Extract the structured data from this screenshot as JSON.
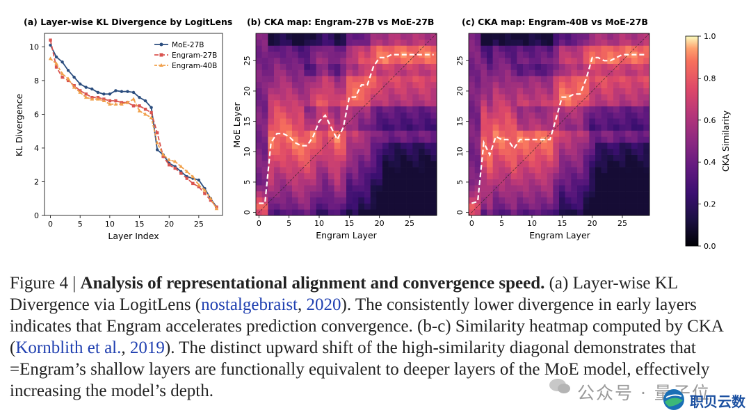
{
  "figure": {
    "number_label": "Figure 4 |",
    "lead": "Analysis of representational alignment and convergence speed.",
    "caption_a": " (a) Layer-wise KL Divergence via LogitLens (",
    "cite1_name": "nostalgebraist",
    "cite1_sep": ", ",
    "cite1_year": "2020",
    "caption_b": "). The consistently lower divergence in early layers indicates that Engram accelerates prediction convergence. (b-c) Similarity heatmap computed by CKA (",
    "cite2_name": "Kornblith et al.",
    "cite2_sep": ", ",
    "cite2_year": "2019",
    "caption_c": "). The distinct upward shift of the high-similarity diagonal demonstrates that =Engram’s shallow layers are functionally equivalent to deeper layers of the MoE model, effectively increasing the model’s depth."
  },
  "chart_data": [
    {
      "type": "line",
      "title": "(a) Layer-wise KL Divergence by LogitLens",
      "xlabel": "Layer Index",
      "ylabel": "KL Divergence",
      "xlim": [
        -1,
        29
      ],
      "ylim": [
        0,
        10.8
      ],
      "xticks": [
        0,
        5,
        10,
        15,
        20,
        25
      ],
      "yticks": [
        0,
        2,
        4,
        6,
        8,
        10
      ],
      "legend_position": "top-right",
      "x": [
        0,
        1,
        2,
        3,
        4,
        5,
        6,
        7,
        8,
        9,
        10,
        11,
        12,
        13,
        14,
        15,
        16,
        17,
        18,
        19,
        20,
        21,
        22,
        23,
        24,
        25,
        26,
        27,
        28
      ],
      "series": [
        {
          "name": "MoE-27B",
          "color": "#2b4d7e",
          "marker": "circle",
          "values": [
            10.1,
            9.4,
            9.1,
            8.6,
            8.2,
            7.8,
            7.6,
            7.5,
            7.3,
            7.2,
            7.2,
            7.4,
            7.35,
            7.35,
            7.3,
            7.0,
            6.8,
            6.4,
            3.9,
            3.6,
            3.1,
            2.9,
            2.6,
            2.3,
            2.2,
            2.1,
            1.6,
            1.0,
            0.5
          ]
        },
        {
          "name": "Engram-27B",
          "color": "#d9534f",
          "marker": "square",
          "values": [
            10.4,
            8.8,
            8.2,
            8.0,
            7.7,
            7.4,
            7.2,
            7.0,
            7.0,
            6.9,
            6.8,
            6.8,
            6.7,
            6.7,
            6.5,
            6.5,
            6.3,
            6.1,
            4.9,
            3.5,
            3.0,
            2.8,
            2.5,
            2.2,
            1.9,
            1.7,
            1.3,
            0.9,
            0.5
          ]
        },
        {
          "name": "Engram-40B",
          "color": "#f0a04b",
          "marker": "triangle",
          "values": [
            9.3,
            9.0,
            8.4,
            8.1,
            7.6,
            7.3,
            7.0,
            6.9,
            6.9,
            6.8,
            6.6,
            6.6,
            6.6,
            6.7,
            6.9,
            6.2,
            6.0,
            5.8,
            4.3,
            3.6,
            3.3,
            3.2,
            2.9,
            2.6,
            2.3,
            1.8,
            1.5,
            1.0,
            0.4
          ]
        }
      ]
    },
    {
      "type": "heatmap",
      "title": "(b) CKA map: Engram-27B vs MoE-27B",
      "xlabel": "Engram Layer",
      "ylabel": "MoE Layer",
      "xlim": [
        0,
        29
      ],
      "ylim": [
        0,
        29
      ],
      "xticks": [
        0,
        5,
        10,
        15,
        20,
        25
      ],
      "yticks": [
        0,
        5,
        10,
        15,
        20,
        25
      ],
      "grid_size": 30,
      "diagonal": "y = x",
      "argmax_path": [
        [
          0,
          1.5
        ],
        [
          1,
          1.5
        ],
        [
          2,
          11.5
        ],
        [
          3,
          13
        ],
        [
          4,
          13
        ],
        [
          5,
          12.5
        ],
        [
          6,
          11.5
        ],
        [
          7,
          11
        ],
        [
          8,
          11
        ],
        [
          9,
          12.5
        ],
        [
          10,
          15
        ],
        [
          11,
          16
        ],
        [
          12,
          14
        ],
        [
          13,
          12
        ],
        [
          14,
          14
        ],
        [
          15,
          19
        ],
        [
          16,
          19
        ],
        [
          17,
          21
        ],
        [
          18,
          21
        ],
        [
          19,
          24
        ],
        [
          20,
          25.5
        ],
        [
          21,
          25.5
        ],
        [
          22,
          26
        ],
        [
          23,
          26
        ],
        [
          24,
          26
        ],
        [
          25,
          26
        ],
        [
          26,
          26
        ],
        [
          27,
          26
        ],
        [
          28,
          26
        ],
        [
          29,
          26
        ]
      ]
    },
    {
      "type": "heatmap",
      "title": "(c) CKA map: Engram-40B vs MoE-27B",
      "xlabel": "Engram Layer",
      "ylabel": "MoE Layer",
      "xlim": [
        0,
        29
      ],
      "ylim": [
        0,
        29
      ],
      "xticks": [
        0,
        5,
        10,
        15,
        20,
        25
      ],
      "yticks": [
        0,
        5,
        10,
        15,
        20,
        25
      ],
      "grid_size": 30,
      "diagonal": "y = x",
      "argmax_path": [
        [
          0,
          1.5
        ],
        [
          1,
          1.8
        ],
        [
          2,
          11.5
        ],
        [
          3,
          9.5
        ],
        [
          4,
          12.5
        ],
        [
          5,
          12
        ],
        [
          6,
          12
        ],
        [
          7,
          10.5
        ],
        [
          8,
          12
        ],
        [
          9,
          12
        ],
        [
          10,
          12
        ],
        [
          11,
          12
        ],
        [
          12,
          12
        ],
        [
          13,
          12
        ],
        [
          14,
          15.5
        ],
        [
          15,
          19
        ],
        [
          16,
          19
        ],
        [
          17,
          19.5
        ],
        [
          18,
          19.5
        ],
        [
          19,
          22
        ],
        [
          20,
          25.5
        ],
        [
          21,
          25.5
        ],
        [
          22,
          25
        ],
        [
          23,
          25
        ],
        [
          24,
          25.5
        ],
        [
          25,
          26
        ],
        [
          26,
          26
        ],
        [
          27,
          26
        ],
        [
          28,
          26
        ],
        [
          29,
          26
        ]
      ]
    },
    {
      "type": "colorbar",
      "label": "CKA Similarity",
      "ticks": [
        "0.0",
        "0.2",
        "0.4",
        "0.6",
        "0.8",
        "1.0"
      ],
      "range": [
        0,
        1
      ]
    }
  ],
  "watermark": {
    "source_text": "公众号 · 量子位",
    "logo_text": "职贝云数"
  }
}
